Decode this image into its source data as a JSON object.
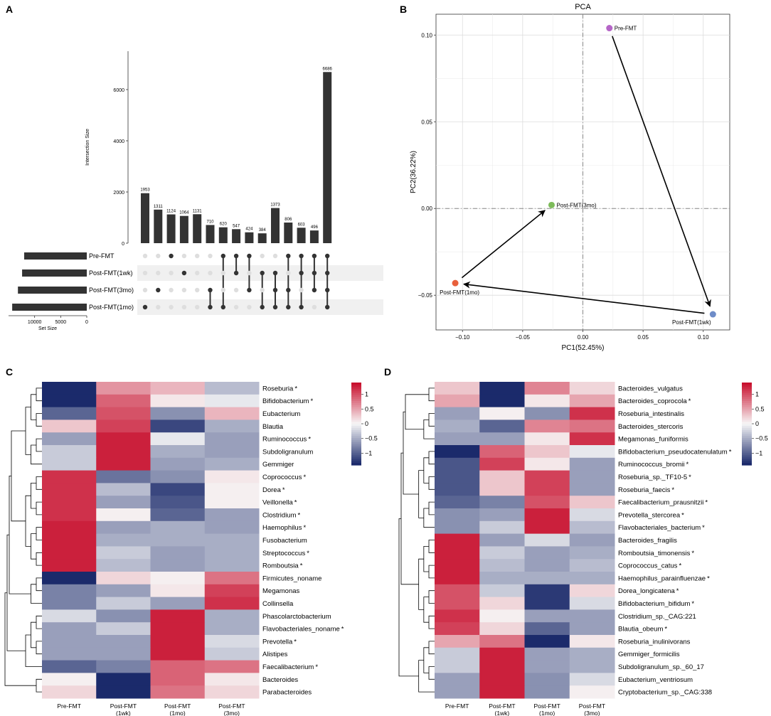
{
  "panel_letters": {
    "a": "A",
    "b": "B",
    "c": "C",
    "d": "D"
  },
  "palette": {
    "low": "#1b2a6b",
    "mid": "#f7f7f7",
    "high": "#c8102e",
    "bar": "#333333",
    "grid": "#dcdcdc",
    "dot_off": "#dedede",
    "dot_on": "#333333"
  },
  "chart_data": [
    {
      "id": "upset",
      "type": "bar",
      "ylabel": "Intersection Size",
      "ylim": [
        0,
        7500
      ],
      "yticks": [
        0,
        2000,
        4000,
        6000
      ],
      "values": [
        1953,
        1311,
        1124,
        1064,
        1131,
        710,
        620,
        547,
        424,
        384,
        1373,
        806,
        603,
        496,
        6686
      ],
      "value_labels": [
        "1953",
        "1311",
        "1124",
        "1064",
        "1131",
        "710",
        "620",
        "547",
        "424",
        "384",
        "1373",
        "806",
        "603",
        "496",
        "6686"
      ],
      "sets": [
        "Pre-FMT",
        "Post-FMT(1wk)",
        "Post-FMT(3mo)",
        "Post-FMT(1mo)"
      ],
      "memberships": [
        [
          3
        ],
        [
          2
        ],
        [
          0
        ],
        [
          1
        ],
        [],
        [
          2,
          3
        ],
        [
          0,
          3
        ],
        [
          0,
          1
        ],
        [
          0,
          2
        ],
        [
          1,
          3
        ],
        [
          1,
          2,
          3
        ],
        [
          0,
          2,
          3
        ],
        [
          0,
          1,
          3
        ],
        [
          0,
          1,
          2
        ],
        [
          0,
          1,
          2,
          3
        ]
      ],
      "set_sizes": [
        12000,
        12400,
        13200,
        14300
      ],
      "set_size_label": "Set Size",
      "set_size_ticks": [
        10000,
        5000,
        0
      ],
      "set_size_tick_labels": [
        "10000",
        "5000",
        "0"
      ]
    },
    {
      "id": "pca",
      "type": "scatter",
      "title": "PCA",
      "xlabel": "PC1(52.45%)",
      "ylabel": "PC2(36.22%)",
      "xlim": [
        -0.122,
        0.122
      ],
      "ylim": [
        -0.07,
        0.112
      ],
      "xticks": [
        -0.1,
        -0.05,
        0.0,
        0.05,
        0.1
      ],
      "xtick_labels": [
        "−0.10",
        "−0.05",
        "0.00",
        "0.05",
        "0.10"
      ],
      "yticks": [
        -0.05,
        0.0,
        0.05,
        0.1
      ],
      "ytick_labels": [
        "−0.05",
        "0.00",
        "0.05",
        "0.10"
      ],
      "points": [
        {
          "label": "Pre-FMT",
          "x": 0.022,
          "y": 0.104,
          "color": "#b565c7"
        },
        {
          "label": "Post-FMT(1wk)",
          "x": 0.108,
          "y": -0.061,
          "color": "#6e8cc8"
        },
        {
          "label": "Post-FMT(1mo)",
          "x": -0.106,
          "y": -0.043,
          "color": "#e8603c"
        },
        {
          "label": "Post-FMT(3mo)",
          "x": -0.026,
          "y": 0.002,
          "color": "#7dbb5a"
        }
      ],
      "arrows": [
        [
          0,
          1
        ],
        [
          1,
          2
        ],
        [
          2,
          3
        ]
      ]
    },
    {
      "id": "heatmap_genus",
      "type": "heatmap",
      "columns": [
        "Pre-FMT",
        "Post-FMT (1wk)",
        "Post-FMT (1mo)",
        "Post-FMT (3mo)"
      ],
      "legend_ticks": [
        1,
        0.5,
        0,
        -0.5,
        -1
      ],
      "legend_labels": [
        "1",
        "0.5",
        "0",
        "−0.5",
        "−1"
      ],
      "scale": [
        -1.4,
        1.4
      ],
      "rows": [
        {
          "label": "Roseburia",
          "star": "*",
          "values": [
            -1.4,
            0.6,
            0.4,
            -0.4
          ]
        },
        {
          "label": "Bifidobacterium",
          "star": "*",
          "values": [
            -1.4,
            0.9,
            0.1,
            -0.1
          ]
        },
        {
          "label": "Eubacterium",
          "star": "",
          "values": [
            -1.0,
            1.0,
            -0.7,
            0.4
          ]
        },
        {
          "label": "Blautia",
          "star": "",
          "values": [
            0.3,
            1.1,
            -1.2,
            -0.5
          ]
        },
        {
          "label": "Ruminococcus",
          "star": "*",
          "values": [
            -0.6,
            1.3,
            -0.1,
            -0.6
          ]
        },
        {
          "label": "Subdoligranulum",
          "star": "",
          "values": [
            -0.3,
            1.3,
            -0.5,
            -0.6
          ]
        },
        {
          "label": "Gemmiger",
          "star": "",
          "values": [
            -0.3,
            1.3,
            -0.6,
            -0.5
          ]
        },
        {
          "label": "Coprococcus",
          "star": "*",
          "values": [
            1.2,
            -0.9,
            -0.7,
            0.1
          ]
        },
        {
          "label": "Dorea",
          "star": "*",
          "values": [
            1.2,
            -0.4,
            -1.2,
            0.05
          ]
        },
        {
          "label": "Veillonella",
          "star": "*",
          "values": [
            1.2,
            -0.6,
            -1.1,
            0.05
          ]
        },
        {
          "label": "Clostridium",
          "star": "*",
          "values": [
            1.2,
            0.05,
            -1.0,
            -0.6
          ]
        },
        {
          "label": "Haemophilus",
          "star": "*",
          "values": [
            1.3,
            -0.6,
            -0.5,
            -0.6
          ]
        },
        {
          "label": "Fusobacterium",
          "star": "",
          "values": [
            1.3,
            -0.5,
            -0.5,
            -0.5
          ]
        },
        {
          "label": "Streptococcus",
          "star": "*",
          "values": [
            1.3,
            -0.3,
            -0.6,
            -0.5
          ]
        },
        {
          "label": "Romboutsia",
          "star": "*",
          "values": [
            1.3,
            -0.4,
            -0.6,
            -0.5
          ]
        },
        {
          "label": "Firmicutes_noname",
          "star": "",
          "values": [
            -1.4,
            0.2,
            0.05,
            0.8
          ]
        },
        {
          "label": "Megamonas",
          "star": "",
          "values": [
            -0.8,
            -0.6,
            0.1,
            1.1
          ]
        },
        {
          "label": "Collinsella",
          "star": "",
          "values": [
            -0.8,
            -0.3,
            -0.6,
            1.2
          ]
        },
        {
          "label": "Phascolarctobacterium",
          "star": "",
          "values": [
            -0.2,
            -0.7,
            1.3,
            -0.5
          ]
        },
        {
          "label": "Flavobacteriales_noname",
          "star": "*",
          "values": [
            -0.6,
            -0.3,
            1.3,
            -0.5
          ]
        },
        {
          "label": "Prevotella",
          "star": "*",
          "values": [
            -0.6,
            -0.6,
            1.3,
            -0.2
          ]
        },
        {
          "label": "Alistipes",
          "star": "",
          "values": [
            -0.6,
            -0.6,
            1.3,
            -0.3
          ]
        },
        {
          "label": "Faecalibacterium",
          "star": "*",
          "values": [
            -1.0,
            -0.8,
            0.9,
            0.8
          ]
        },
        {
          "label": "Bacteroides",
          "star": "",
          "values": [
            0.05,
            -1.4,
            0.9,
            0.1
          ]
        },
        {
          "label": "Parabacteroides",
          "star": "",
          "values": [
            0.2,
            -1.4,
            0.8,
            0.2
          ]
        }
      ]
    },
    {
      "id": "heatmap_species",
      "type": "heatmap",
      "columns": [
        "Pre-FMT",
        "Post-FMT (1wk)",
        "Post-FMT (1mo)",
        "Post-FMT (3mo)"
      ],
      "legend_ticks": [
        1,
        0.5,
        0,
        -0.5,
        -1
      ],
      "legend_labels": [
        "1",
        "0.5",
        "0",
        "−0.5",
        "−1"
      ],
      "scale": [
        -1.4,
        1.4
      ],
      "rows": [
        {
          "label": "Bacteroides_vulgatus",
          "star": "",
          "values": [
            0.3,
            -1.4,
            0.7,
            0.2
          ]
        },
        {
          "label": "Bacteroides_coprocola",
          "star": "*",
          "values": [
            0.5,
            -1.4,
            0.1,
            0.5
          ]
        },
        {
          "label": "Roseburia_intestinalis",
          "star": "",
          "values": [
            -0.6,
            0.05,
            -0.7,
            1.2
          ]
        },
        {
          "label": "Bacteroides_stercoris",
          "star": "",
          "values": [
            -0.5,
            -1.0,
            0.7,
            0.8
          ]
        },
        {
          "label": "Megamonas_funiformis",
          "star": "",
          "values": [
            -0.6,
            -0.6,
            0.1,
            1.2
          ]
        },
        {
          "label": "Bifidobacterium_pseudocatenulatum",
          "star": "*",
          "values": [
            -1.4,
            0.9,
            0.3,
            -0.1
          ]
        },
        {
          "label": "Ruminococcus_bromii",
          "star": "*",
          "values": [
            -1.1,
            1.1,
            0.1,
            -0.6
          ]
        },
        {
          "label": "Roseburia_sp._TF10-5",
          "star": "*",
          "values": [
            -1.1,
            0.3,
            1.1,
            -0.6
          ]
        },
        {
          "label": "Roseburia_faecis",
          "star": "*",
          "values": [
            -1.1,
            0.3,
            1.1,
            -0.6
          ]
        },
        {
          "label": "Faecalibacterium_prausnitzii",
          "star": "*",
          "values": [
            -1.0,
            -0.8,
            1.0,
            0.3
          ]
        },
        {
          "label": "Prevotella_stercorea",
          "star": "*",
          "values": [
            -0.7,
            -0.6,
            1.3,
            -0.2
          ]
        },
        {
          "label": "Flavobacteriales_bacterium",
          "star": "*",
          "values": [
            -0.7,
            -0.3,
            1.3,
            -0.4
          ]
        },
        {
          "label": "Bacteroides_fragilis",
          "star": "",
          "values": [
            1.3,
            -0.6,
            -0.2,
            -0.6
          ]
        },
        {
          "label": "Romboutsia_timonensis",
          "star": "*",
          "values": [
            1.3,
            -0.3,
            -0.6,
            -0.5
          ]
        },
        {
          "label": "Coprococcus_catus",
          "star": "*",
          "values": [
            1.3,
            -0.4,
            -0.6,
            -0.4
          ]
        },
        {
          "label": "Haemophilus_parainfluenzae",
          "star": "*",
          "values": [
            1.3,
            -0.5,
            -0.5,
            -0.5
          ]
        },
        {
          "label": "Dorea_longicatena",
          "star": "*",
          "values": [
            1.0,
            -0.3,
            -1.3,
            0.2
          ]
        },
        {
          "label": "Bifidobacterium_bifidum",
          "star": "*",
          "values": [
            1.0,
            0.2,
            -1.3,
            -0.2
          ]
        },
        {
          "label": "Clostridium_sp._CAG:221",
          "star": "",
          "values": [
            1.2,
            0.05,
            -0.6,
            -0.6
          ]
        },
        {
          "label": "Blautia_obeum",
          "star": "*",
          "values": [
            1.1,
            0.2,
            -1.0,
            -0.6
          ]
        },
        {
          "label": "Roseburia_inulinivorans",
          "star": "",
          "values": [
            0.5,
            0.8,
            -1.4,
            0.1
          ]
        },
        {
          "label": "Gemmiger_formicilis",
          "star": "",
          "values": [
            -0.3,
            1.3,
            -0.6,
            -0.5
          ]
        },
        {
          "label": "Subdoligranulum_sp._60_17",
          "star": "",
          "values": [
            -0.3,
            1.3,
            -0.6,
            -0.5
          ]
        },
        {
          "label": "Eubacterium_ventriosum",
          "star": "",
          "values": [
            -0.6,
            1.3,
            -0.7,
            -0.2
          ]
        },
        {
          "label": "Cryptobacterium_sp._CAG:338",
          "star": "",
          "values": [
            -0.6,
            1.3,
            -0.7,
            0.05
          ]
        }
      ]
    }
  ]
}
